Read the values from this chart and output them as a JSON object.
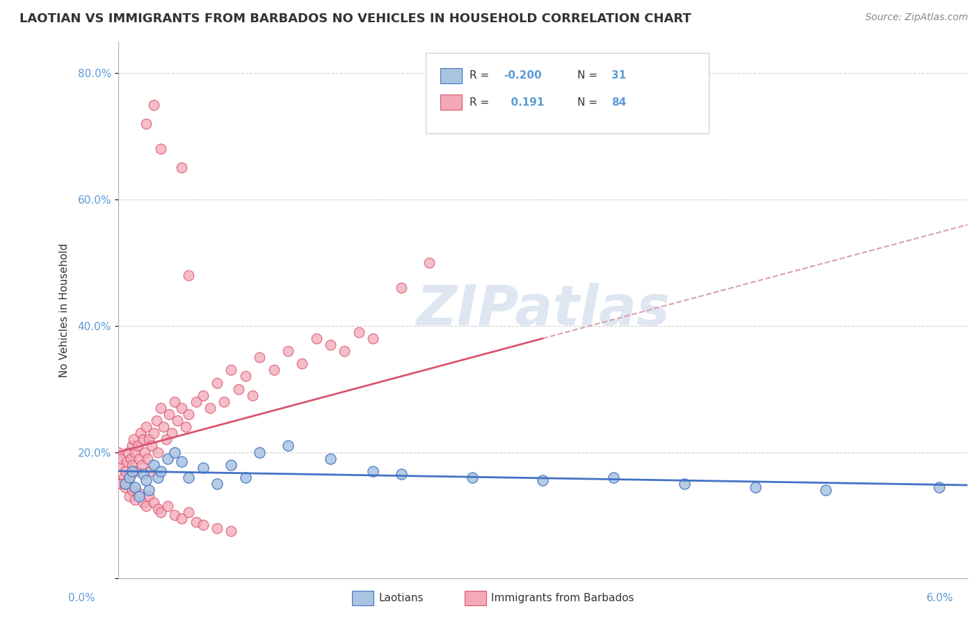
{
  "title": "LAOTIAN VS IMMIGRANTS FROM BARBADOS NO VEHICLES IN HOUSEHOLD CORRELATION CHART",
  "source": "Source: ZipAtlas.com",
  "ylabel": "No Vehicles in Household",
  "xlim": [
    0.0,
    6.0
  ],
  "ylim": [
    0.0,
    85.0
  ],
  "ytick_vals": [
    0,
    20,
    40,
    60,
    80
  ],
  "ytick_labels": [
    "",
    "20.0%",
    "40.0%",
    "60.0%",
    "80.0%"
  ],
  "laotian_color": "#a8c4e0",
  "barbados_color": "#f4a8b8",
  "trend_laotian_color": "#4472c4",
  "trend_barbados_color": "#d9546e",
  "trend_barbados_dashed_color": "#d9a0b0",
  "watermark_color": "#c8d8e8",
  "background_color": "#ffffff",
  "grid_color": "#cccccc",
  "laotian_x": [
    0.05,
    0.08,
    0.1,
    0.12,
    0.15,
    0.18,
    0.2,
    0.22,
    0.25,
    0.28,
    0.3,
    0.35,
    0.4,
    0.45,
    0.5,
    0.6,
    0.7,
    0.8,
    0.9,
    1.0,
    1.2,
    1.5,
    1.8,
    2.0,
    2.5,
    3.0,
    3.5,
    4.0,
    4.5,
    5.0,
    5.8
  ],
  "laotian_y": [
    15.0,
    16.0,
    17.0,
    14.5,
    13.0,
    16.5,
    15.5,
    14.0,
    18.0,
    16.0,
    17.0,
    19.0,
    20.0,
    18.5,
    16.0,
    17.5,
    15.0,
    18.0,
    16.0,
    20.0,
    21.0,
    19.0,
    17.0,
    16.5,
    16.0,
    15.5,
    16.0,
    15.0,
    14.5,
    14.0,
    14.5
  ],
  "barbados_x": [
    0.0,
    0.01,
    0.02,
    0.03,
    0.04,
    0.05,
    0.06,
    0.07,
    0.08,
    0.09,
    0.1,
    0.1,
    0.11,
    0.12,
    0.13,
    0.14,
    0.15,
    0.16,
    0.17,
    0.18,
    0.19,
    0.2,
    0.21,
    0.22,
    0.23,
    0.24,
    0.25,
    0.27,
    0.28,
    0.3,
    0.32,
    0.34,
    0.36,
    0.38,
    0.4,
    0.42,
    0.45,
    0.48,
    0.5,
    0.55,
    0.6,
    0.65,
    0.7,
    0.75,
    0.8,
    0.85,
    0.9,
    0.95,
    1.0,
    1.1,
    1.2,
    1.3,
    1.4,
    1.5,
    1.6,
    1.7,
    1.8,
    0.02,
    0.05,
    0.08,
    0.1,
    0.12,
    0.15,
    0.18,
    0.2,
    0.22,
    0.25,
    0.28,
    0.3,
    0.35,
    0.4,
    0.45,
    0.5,
    0.55,
    0.6,
    0.7,
    0.8,
    2.0,
    2.2,
    0.3,
    0.2,
    0.25,
    0.45,
    0.5
  ],
  "barbados_y": [
    20.0,
    18.0,
    19.0,
    15.0,
    16.0,
    17.0,
    18.5,
    20.0,
    16.0,
    19.0,
    21.0,
    18.0,
    22.0,
    20.0,
    17.0,
    21.0,
    19.0,
    23.0,
    18.0,
    22.0,
    20.0,
    24.0,
    19.0,
    22.0,
    17.0,
    21.0,
    23.0,
    25.0,
    20.0,
    27.0,
    24.0,
    22.0,
    26.0,
    23.0,
    28.0,
    25.0,
    27.0,
    24.0,
    26.0,
    28.0,
    29.0,
    27.0,
    31.0,
    28.0,
    33.0,
    30.0,
    32.0,
    29.0,
    35.0,
    33.0,
    36.0,
    34.0,
    38.0,
    37.0,
    36.0,
    39.0,
    38.0,
    15.0,
    14.5,
    13.0,
    14.0,
    12.5,
    13.5,
    12.0,
    11.5,
    13.0,
    12.0,
    11.0,
    10.5,
    11.5,
    10.0,
    9.5,
    10.5,
    9.0,
    8.5,
    8.0,
    7.5,
    46.0,
    50.0,
    68.0,
    72.0,
    75.0,
    65.0,
    48.0
  ]
}
